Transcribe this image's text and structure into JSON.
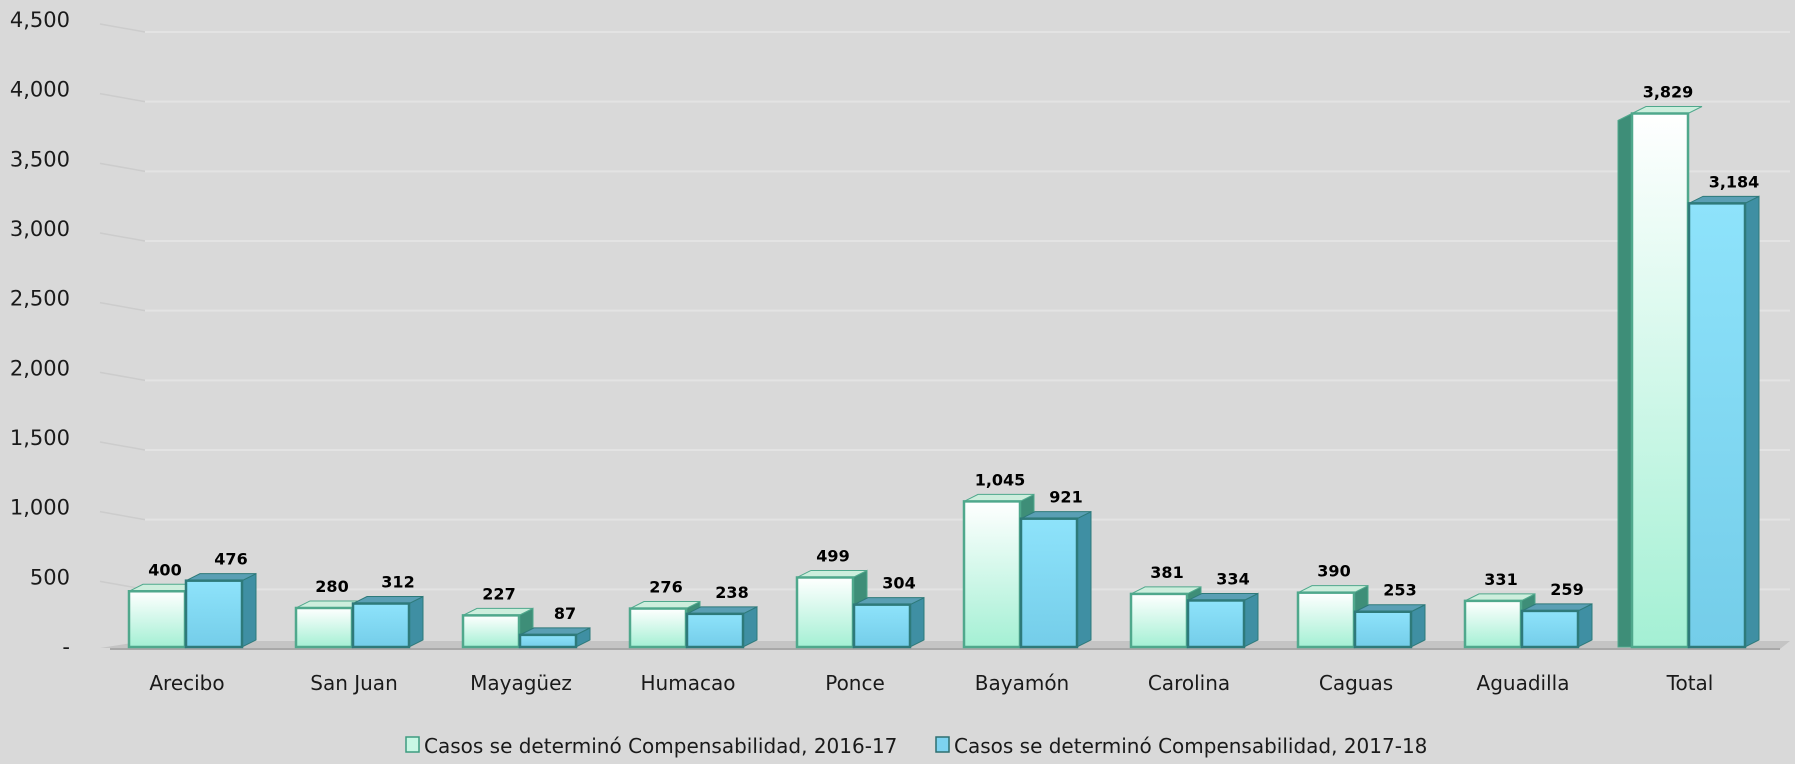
{
  "chart_data": {
    "type": "bar",
    "style": "3d-clustered-column",
    "categories": [
      "Arecibo",
      "San Juan",
      "Mayagüez",
      "Humacao",
      "Ponce",
      "Bayamón",
      "Carolina",
      "Caguas",
      "Aguadilla",
      "Total"
    ],
    "series": [
      {
        "name": "Casos se determinó Compensabilidad, 2016-17",
        "values": [
          400,
          280,
          227,
          276,
          499,
          1045,
          381,
          390,
          331,
          3829
        ],
        "labels": [
          "400",
          "280",
          "227",
          "276",
          "499",
          "1,045",
          "381",
          "390",
          "331",
          "3,829"
        ],
        "color": "#b7f5dd",
        "edge": "#4fa88c"
      },
      {
        "name": "Casos se determinó Compensabilidad, 2017-18",
        "values": [
          476,
          312,
          87,
          238,
          304,
          921,
          334,
          253,
          259,
          3184
        ],
        "labels": [
          "476",
          "312",
          "87",
          "238",
          "304",
          "921",
          "334",
          "253",
          "259",
          "3,184"
        ],
        "color": "#7dd3f0",
        "edge": "#2e7a7a"
      }
    ],
    "ylim": [
      0,
      4500
    ],
    "yticks": [
      0,
      500,
      1000,
      1500,
      2000,
      2500,
      3000,
      3500,
      4000,
      4500
    ],
    "ytick_labels": [
      "-",
      "500",
      "1,000",
      "1,500",
      "2,000",
      "2,500",
      "3,000",
      "3,500",
      "4,000",
      "4,500"
    ],
    "grid": true,
    "legend_position": "bottom",
    "title": "",
    "xlabel": "",
    "ylabel": ""
  }
}
